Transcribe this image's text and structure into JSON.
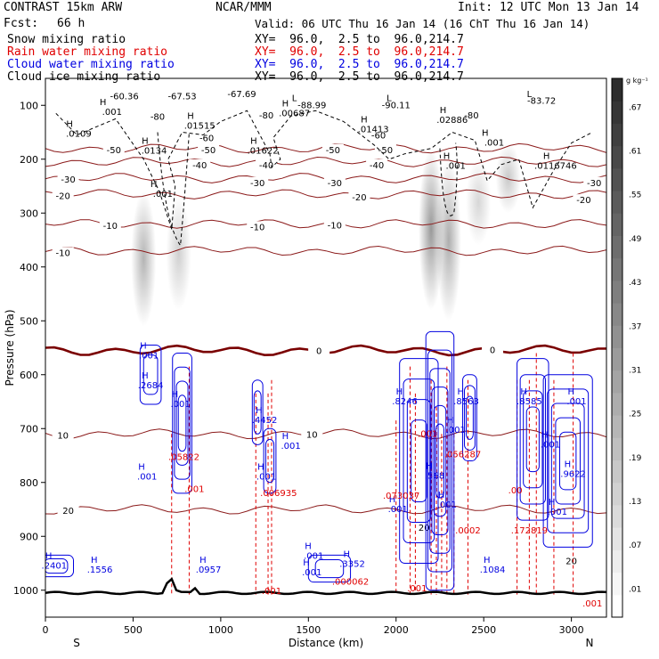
{
  "header": {
    "model": "CONTRAST 15km ARW",
    "center": "NCAR/MMM",
    "init": "Init: 12 UTC Mon 13 Jan 14",
    "fcst_label": "Fcst:",
    "fcst_value": "66 h",
    "valid": "Valid: 06 UTC Thu 16 Jan 14 (16 ChT Thu 16 Jan 14)",
    "fields": [
      {
        "name": "Snow mixing ratio",
        "xy": "XY=  96.0,  2.5 to  96.0,214.7",
        "color": "#000000"
      },
      {
        "name": "Rain water mixing ratio",
        "xy": "XY=  96.0,  2.5 to  96.0,214.7",
        "color": "#e00000"
      },
      {
        "name": "Cloud water mixing ratio",
        "xy": "XY=  96.0,  2.5 to  96.0,214.7",
        "color": "#0000e0"
      },
      {
        "name": "Cloud ice mixing ratio",
        "xy": "XY=  96.0,  2.5 to  96.0,214.7",
        "color": "#000000"
      }
    ]
  },
  "chart_data": {
    "type": "heatmap",
    "xlabel": "Distance (km)",
    "ylabel": "Pressure (hPa)",
    "xlim": [
      0,
      3200
    ],
    "ylim": [
      1050,
      50
    ],
    "x_ticks": [
      0,
      500,
      1000,
      1500,
      2000,
      2500,
      3000
    ],
    "y_ticks": [
      100,
      200,
      300,
      400,
      500,
      600,
      700,
      800,
      900,
      1000
    ],
    "end_labels": {
      "left": "S",
      "right": "N"
    },
    "colorbar": {
      "unit": "g kg⁻¹",
      "levels": [
        ".01",
        ".07",
        ".13",
        ".19",
        ".25",
        ".31",
        ".37",
        ".43",
        ".49",
        ".55",
        ".61",
        ".67"
      ]
    },
    "colors": {
      "temperature": "#8b1a1a",
      "freezing": "#7a0000",
      "rain": "#e00000",
      "cloud_water": "#0000e0",
      "terrain": "#000000"
    },
    "temperature_contours": [
      {
        "label": "-50",
        "p": 180
      },
      {
        "label": "-40",
        "p": 205
      },
      {
        "label": "-30",
        "p": 235
      },
      {
        "label": "-20",
        "p": 265
      },
      {
        "label": "-10",
        "p": 320
      },
      {
        "label": "-10",
        "p": 370
      },
      {
        "label": "0",
        "p": 555
      },
      {
        "label": "10",
        "p": 710
      },
      {
        "label": "20",
        "p": 850
      }
    ],
    "temperature_labels": [
      {
        "text": "-50",
        "x": 390,
        "p": 182
      },
      {
        "text": "-50",
        "x": 930,
        "p": 182
      },
      {
        "text": "-50",
        "x": 1640,
        "p": 182
      },
      {
        "text": "-50",
        "x": 1940,
        "p": 182
      },
      {
        "text": "-40",
        "x": 880,
        "p": 210
      },
      {
        "text": "-40",
        "x": 1260,
        "p": 210
      },
      {
        "text": "-40",
        "x": 1890,
        "p": 210
      },
      {
        "text": "-30",
        "x": 130,
        "p": 237
      },
      {
        "text": "-30",
        "x": 1210,
        "p": 243
      },
      {
        "text": "-30",
        "x": 1650,
        "p": 243
      },
      {
        "text": "-30",
        "x": 3130,
        "p": 243
      },
      {
        "text": "-20",
        "x": 100,
        "p": 267
      },
      {
        "text": "-20",
        "x": 1790,
        "p": 270
      },
      {
        "text": "-20",
        "x": 3070,
        "p": 275
      },
      {
        "text": "-10",
        "x": 370,
        "p": 323
      },
      {
        "text": "-10",
        "x": 1210,
        "p": 325
      },
      {
        "text": "-10",
        "x": 1650,
        "p": 322
      },
      {
        "text": "-10",
        "x": 100,
        "p": 373
      },
      {
        "text": "0",
        "x": 1560,
        "p": 555
      },
      {
        "text": "0",
        "x": 2550,
        "p": 553
      },
      {
        "text": "10",
        "x": 100,
        "p": 712
      },
      {
        "text": "10",
        "x": 1520,
        "p": 710
      },
      {
        "text": "20",
        "x": 130,
        "p": 852
      },
      {
        "text": "20",
        "x": 2160,
        "p": 883
      },
      {
        "text": "20",
        "x": 3000,
        "p": 945
      },
      {
        "text": "-60.36",
        "x": 450,
        "p": 82
      },
      {
        "text": "-67.53",
        "x": 780,
        "p": 82
      },
      {
        "text": "-67.69",
        "x": 1120,
        "p": 78
      },
      {
        "text": "-80",
        "x": 640,
        "p": 120
      },
      {
        "text": "-80",
        "x": 1260,
        "p": 118
      },
      {
        "text": "-80",
        "x": 2430,
        "p": 118
      },
      {
        "text": "-60",
        "x": 920,
        "p": 160
      },
      {
        "text": "-60",
        "x": 1900,
        "p": 155
      }
    ],
    "min_labels": [
      {
        "text": "L",
        "x": 1420,
        "p": 92
      },
      {
        "text": "-88.99",
        "x": 1520,
        "p": 105
      },
      {
        "text": "L",
        "x": 1960,
        "p": 92
      },
      {
        "text": "-90.11",
        "x": 2000,
        "p": 105
      },
      {
        "text": "L",
        "x": 2760,
        "p": 85
      },
      {
        "text": "-83.72",
        "x": 2830,
        "p": 97
      }
    ],
    "snow_maxima": [
      {
        "text": ".001",
        "x": 380,
        "p": 118
      },
      {
        "text": ".0109",
        "x": 190,
        "p": 158
      },
      {
        "text": ".01515",
        "x": 880,
        "p": 143
      },
      {
        "text": ".00687",
        "x": 1420,
        "p": 120
      },
      {
        "text": ".01413",
        "x": 1870,
        "p": 150
      },
      {
        "text": ".02886",
        "x": 2320,
        "p": 133
      },
      {
        "text": ".0134",
        "x": 620,
        "p": 190
      },
      {
        "text": ".01622",
        "x": 1240,
        "p": 190
      },
      {
        "text": ".001",
        "x": 2340,
        "p": 218
      },
      {
        "text": ".0116746",
        "x": 2910,
        "p": 218
      },
      {
        "text": ".001",
        "x": 670,
        "p": 270
      },
      {
        "text": ".001",
        "x": 2560,
        "p": 175
      }
    ],
    "cloud_water_maxima": [
      {
        "text": ".001",
        "x": 590,
        "p": 570
      },
      {
        "text": ".2684",
        "x": 600,
        "p": 625
      },
      {
        "text": ".001",
        "x": 770,
        "p": 660
      },
      {
        "text": ".4452",
        "x": 1250,
        "p": 690
      },
      {
        "text": ".001",
        "x": 1400,
        "p": 738
      },
      {
        "text": ".001",
        "x": 1260,
        "p": 795
      },
      {
        "text": ".001",
        "x": 580,
        "p": 795
      },
      {
        "text": ".8246",
        "x": 2050,
        "p": 655
      },
      {
        "text": ".8563",
        "x": 2400,
        "p": 655
      },
      {
        "text": ".001",
        "x": 2340,
        "p": 708
      },
      {
        "text": ".8585",
        "x": 2760,
        "p": 655
      },
      {
        "text": ".001",
        "x": 3030,
        "p": 655
      },
      {
        "text": ".001",
        "x": 2880,
        "p": 735
      },
      {
        "text": ".9622",
        "x": 3010,
        "p": 790
      },
      {
        "text": ".001",
        "x": 2010,
        "p": 855
      },
      {
        "text": ".568",
        "x": 2220,
        "p": 793
      },
      {
        "text": ".001",
        "x": 2290,
        "p": 847
      },
      {
        "text": ".001",
        "x": 2920,
        "p": 860
      },
      {
        "text": ".2401",
        "x": 50,
        "p": 960
      },
      {
        "text": ".1556",
        "x": 310,
        "p": 967
      },
      {
        "text": ".0957",
        "x": 930,
        "p": 967
      },
      {
        "text": ".001",
        "x": 1530,
        "p": 942
      },
      {
        "text": ".3352",
        "x": 1750,
        "p": 957
      },
      {
        "text": ".001",
        "x": 1520,
        "p": 972
      },
      {
        "text": ".1084",
        "x": 2550,
        "p": 967
      }
    ],
    "rain_maxima": [
      {
        "text": ".05822",
        "x": 790,
        "p": 758
      },
      {
        "text": ".001",
        "x": 850,
        "p": 818
      },
      {
        "text": ".006935",
        "x": 1330,
        "p": 825
      },
      {
        "text": ".001",
        "x": 1290,
        "p": 1007
      },
      {
        "text": ".000062",
        "x": 1740,
        "p": 990
      },
      {
        "text": ".073037",
        "x": 2030,
        "p": 830
      },
      {
        "text": ".001",
        "x": 2120,
        "p": 1002
      },
      {
        "text": ".056287",
        "x": 2380,
        "p": 753
      },
      {
        "text": ".0002",
        "x": 2410,
        "p": 895
      },
      {
        "text": ".001",
        "x": 2180,
        "p": 715
      },
      {
        "text": ".172819",
        "x": 2760,
        "p": 895
      },
      {
        "text": ".00",
        "x": 2680,
        "p": 820
      },
      {
        "text": ".001",
        "x": 3120,
        "p": 1030
      }
    ],
    "shaded_regions": [
      {
        "x": 560,
        "p": [
          260,
          510
        ],
        "intensity": 0.55
      },
      {
        "x": 760,
        "p": [
          270,
          480
        ],
        "intensity": 0.35
      },
      {
        "x": 2200,
        "p": [
          180,
          480
        ],
        "intensity": 0.75
      },
      {
        "x": 2300,
        "p": [
          200,
          500
        ],
        "intensity": 0.6
      },
      {
        "x": 2470,
        "p": [
          200,
          360
        ],
        "intensity": 0.3
      },
      {
        "x": 2640,
        "p": [
          170,
          300
        ],
        "intensity": 0.4
      }
    ]
  }
}
